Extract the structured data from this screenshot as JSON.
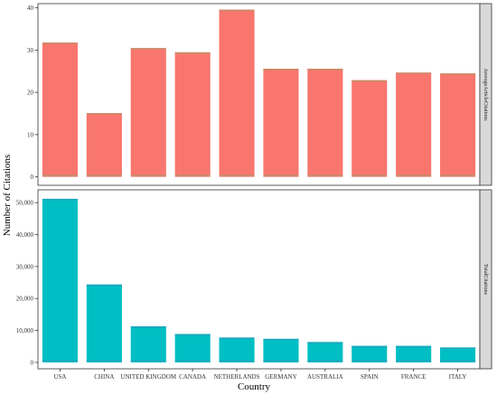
{
  "chart_data": {
    "type": "bar",
    "xlabel": "Country",
    "ylabel": "Number of Citations",
    "categories": [
      "USA",
      "CHINA",
      "UNITED KINGDOM",
      "CANADA",
      "NETHERLANDS",
      "GERMANY",
      "AUSTRALIA",
      "SPAIN",
      "FRANCE",
      "ITALY"
    ],
    "grid": false,
    "legend": "none",
    "panels": [
      {
        "strip": "AverageArticleCitations",
        "ylim": [
          -2,
          41
        ],
        "yticks": [
          0,
          10,
          20,
          30,
          40
        ],
        "ytick_labels": [
          "0",
          "10",
          "20",
          "30",
          "40"
        ],
        "color": "#F8766D",
        "values": [
          31.8,
          15.1,
          30.5,
          29.5,
          39.6,
          25.6,
          25.6,
          22.9,
          24.7,
          24.5
        ]
      },
      {
        "strip": "TotalCitations",
        "ylim": [
          -2000,
          54000
        ],
        "yticks": [
          0,
          10000,
          20000,
          30000,
          40000,
          50000
        ],
        "ytick_labels": [
          "0",
          "10,000",
          "20,000",
          "30,000",
          "40,000",
          "50,000"
        ],
        "color": "#00BFC4",
        "values": [
          51200,
          24400,
          11300,
          8900,
          7800,
          7400,
          6400,
          5200,
          5200,
          4700
        ]
      }
    ]
  }
}
